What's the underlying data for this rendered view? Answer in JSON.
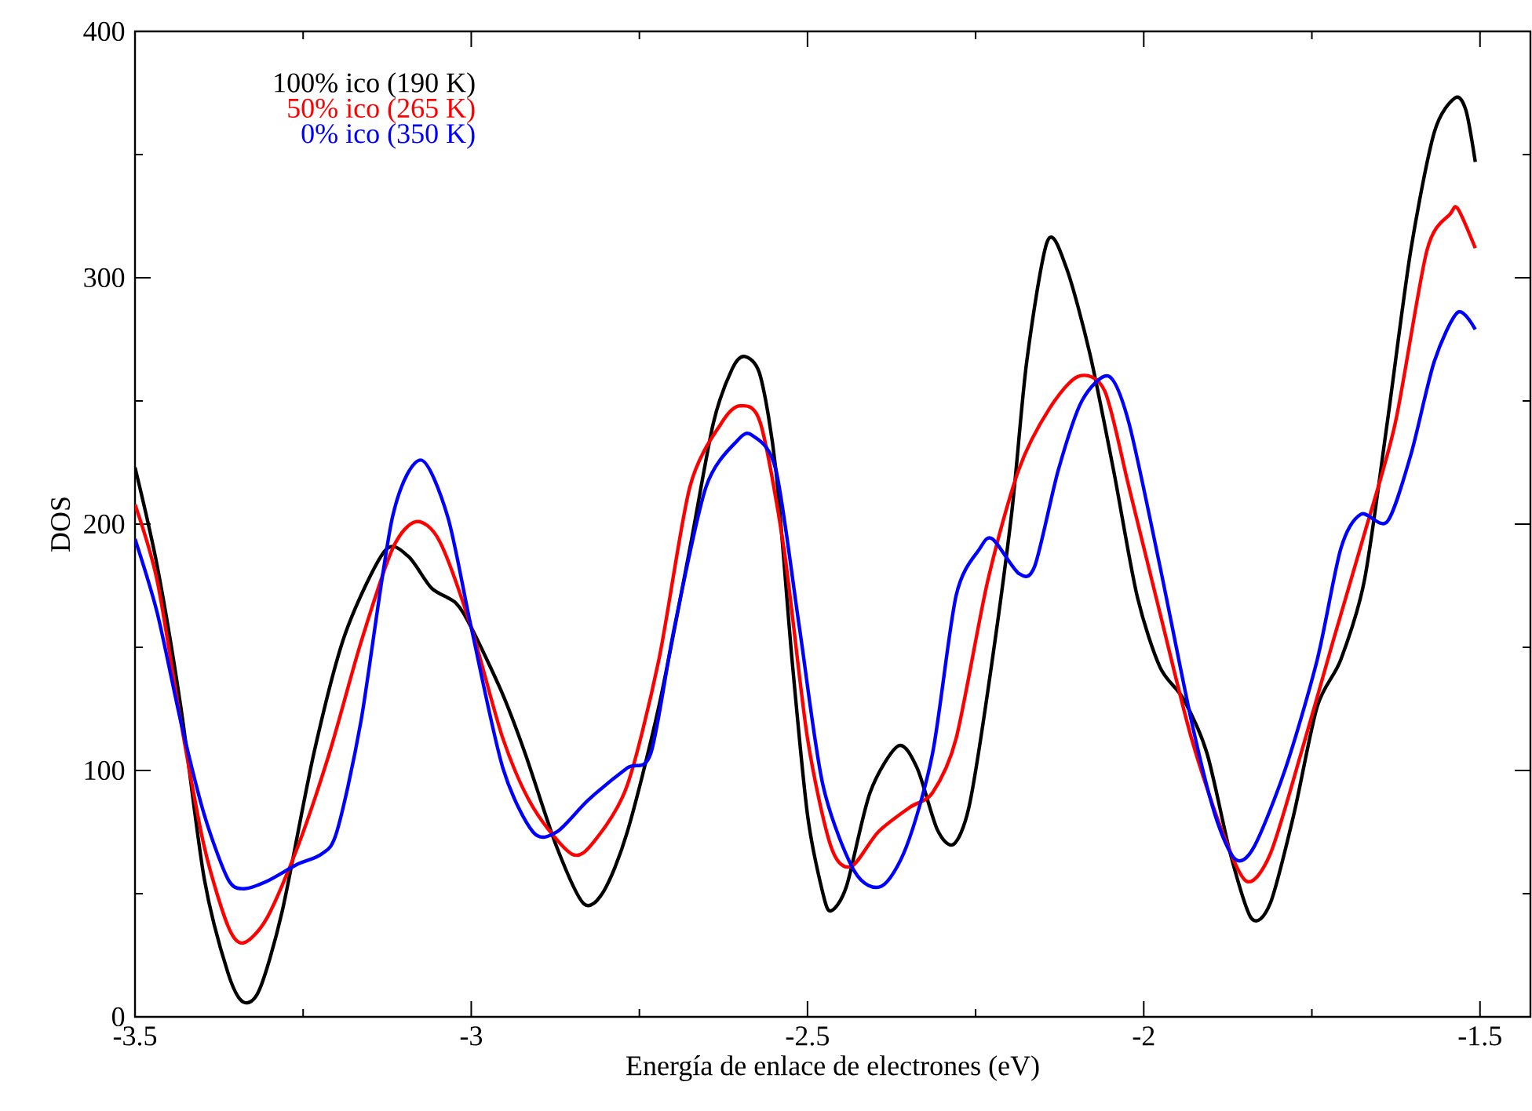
{
  "chart_data": {
    "type": "line",
    "xlabel": "Energía de enlace de electrones (eV)",
    "ylabel": "DOS",
    "xlim": [
      -3.5,
      -1.425
    ],
    "ylim": [
      0,
      400
    ],
    "xticks": [
      {
        "value": -3.5,
        "label": "-3.5"
      },
      {
        "value": -3,
        "label": "-3"
      },
      {
        "value": -2.5,
        "label": "-2.5"
      },
      {
        "value": -2,
        "label": "-2"
      },
      {
        "value": -1.5,
        "label": "-1.5"
      }
    ],
    "yticks": [
      0,
      100,
      200,
      300,
      400
    ],
    "legend": "top left",
    "marker": "none",
    "line_style": "solid",
    "series": [
      {
        "name": "100% ico (190 K)",
        "color": "#000000",
        "x": [
          -3.5,
          -3.467,
          -3.432,
          -3.397,
          -3.362,
          -3.339,
          -3.315,
          -3.281,
          -3.234,
          -3.188,
          -3.129,
          -3.094,
          -3.059,
          -3.023,
          -3.0,
          -2.955,
          -2.92,
          -2.873,
          -2.833,
          -2.803,
          -2.768,
          -2.721,
          -2.675,
          -2.64,
          -2.612,
          -2.593,
          -2.57,
          -2.547,
          -2.523,
          -2.5,
          -2.477,
          -2.465,
          -2.442,
          -2.407,
          -2.365,
          -2.337,
          -2.307,
          -2.283,
          -2.26,
          -2.232,
          -2.197,
          -2.174,
          -2.143,
          -2.115,
          -2.08,
          -2.045,
          -2.01,
          -1.976,
          -1.941,
          -1.906,
          -1.871,
          -1.84,
          -1.812,
          -1.777,
          -1.742,
          -1.707,
          -1.672,
          -1.638,
          -1.603,
          -1.568,
          -1.537,
          -1.521,
          -1.507
        ],
        "values": [
          223,
          183,
          126,
          56,
          18,
          6,
          11,
          43,
          107,
          155,
          189,
          187,
          174,
          168,
          158,
          132,
          107,
          69,
          46,
          51,
          75,
          126,
          190,
          241,
          263,
          268,
          260,
          222,
          145,
          82,
          50,
          43,
          53,
          91,
          110,
          101,
          76,
          70,
          85,
          132,
          203,
          266,
          315,
          304,
          269,
          222,
          171,
          142,
          129,
          107,
          66,
          40,
          46,
          82,
          126,
          145,
          177,
          241,
          311,
          359,
          373,
          368,
          347
        ]
      },
      {
        "name": "50% ico (265 K)",
        "color": "#ff0000",
        "x": [
          -3.5,
          -3.467,
          -3.432,
          -3.397,
          -3.362,
          -3.339,
          -3.304,
          -3.258,
          -3.211,
          -3.164,
          -3.117,
          -3.082,
          -3.047,
          -3.0,
          -2.953,
          -2.908,
          -2.85,
          -2.815,
          -2.768,
          -2.721,
          -2.675,
          -2.628,
          -2.6,
          -2.57,
          -2.535,
          -2.5,
          -2.465,
          -2.435,
          -2.395,
          -2.348,
          -2.314,
          -2.279,
          -2.232,
          -2.186,
          -2.14,
          -2.097,
          -2.058,
          -2.022,
          -1.976,
          -1.929,
          -1.883,
          -1.847,
          -1.812,
          -1.766,
          -1.719,
          -1.672,
          -1.626,
          -1.579,
          -1.544,
          -1.533,
          -1.507
        ],
        "values": [
          208,
          177,
          120,
          69,
          37,
          30,
          40,
          69,
          107,
          152,
          190,
          201,
          193,
          158,
          113,
          85,
          66,
          72,
          94,
          145,
          215,
          241,
          248,
          241,
          190,
          113,
          69,
          61,
          75,
          85,
          91,
          113,
          177,
          222,
          247,
          260,
          254,
          215,
          164,
          113,
          75,
          55,
          66,
          107,
          152,
          196,
          241,
          311,
          326,
          328,
          312
        ]
      },
      {
        "name": "0% ico (350 K)",
        "color": "#0000ff",
        "x": [
          -3.5,
          -3.467,
          -3.432,
          -3.397,
          -3.362,
          -3.339,
          -3.304,
          -3.258,
          -3.223,
          -3.2,
          -3.164,
          -3.117,
          -3.075,
          -3.035,
          -3.0,
          -2.953,
          -2.908,
          -2.873,
          -2.826,
          -2.768,
          -2.733,
          -2.698,
          -2.651,
          -2.604,
          -2.582,
          -2.547,
          -2.512,
          -2.477,
          -2.43,
          -2.39,
          -2.353,
          -2.314,
          -2.279,
          -2.244,
          -2.225,
          -2.186,
          -2.162,
          -2.127,
          -2.092,
          -2.052,
          -2.022,
          -1.976,
          -1.929,
          -1.894,
          -1.864,
          -1.836,
          -1.789,
          -1.742,
          -1.707,
          -1.677,
          -1.638,
          -1.603,
          -1.568,
          -1.533,
          -1.507
        ],
        "values": [
          194,
          164,
          120,
          82,
          56,
          52,
          55,
          62,
          66,
          75,
          120,
          203,
          226,
          203,
          158,
          101,
          75,
          75,
          88,
          101,
          107,
          158,
          215,
          234,
          236,
          222,
          158,
          94,
          59,
          53,
          69,
          107,
          171,
          190,
          194,
          180,
          183,
          222,
          250,
          260,
          241,
          183,
          120,
          82,
          64,
          69,
          101,
          145,
          190,
          204,
          201,
          228,
          266,
          286,
          279
        ]
      }
    ]
  }
}
